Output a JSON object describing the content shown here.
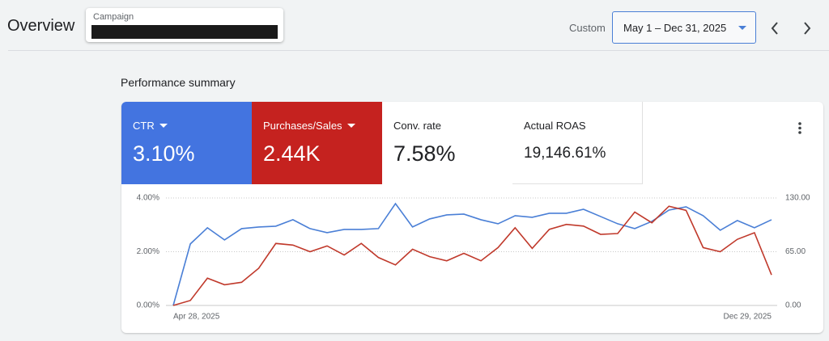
{
  "header": {
    "title": "Overview",
    "campaign_label": "Campaign",
    "range_label": "Custom",
    "date_range": "May 1 – Dec 31, 2025"
  },
  "section_title": "Performance summary",
  "chart_data": {
    "type": "line",
    "categories": [
      "Apr 28, 2025",
      null,
      null,
      null,
      null,
      null,
      null,
      null,
      null,
      null,
      null,
      null,
      null,
      null,
      null,
      null,
      null,
      null,
      null,
      null,
      null,
      null,
      null,
      null,
      null,
      null,
      null,
      null,
      null,
      null,
      null,
      null,
      null,
      null,
      null,
      "Dec 29, 2025"
    ],
    "series": [
      {
        "name": "CTR",
        "summary": "3.10%",
        "color": "#4a7fd6",
        "axis": "y",
        "values": [
          0,
          2.29,
          2.89,
          2.44,
          2.86,
          2.92,
          2.95,
          3.19,
          2.86,
          2.71,
          2.83,
          2.83,
          2.86,
          3.79,
          2.92,
          3.22,
          3.37,
          3.4,
          3.19,
          3.04,
          3.34,
          3.28,
          3.43,
          3.43,
          3.58,
          3.31,
          3.04,
          2.86,
          3.13,
          3.55,
          3.67,
          3.34,
          2.8,
          3.16,
          2.89,
          3.19
        ]
      },
      {
        "name": "Purchases/Sales",
        "summary": "2.44K",
        "color": "#c0392b",
        "axis": "y2",
        "values": [
          0,
          6,
          33,
          25,
          28,
          45,
          75,
          73,
          65,
          72,
          61,
          75,
          58,
          49,
          68,
          59,
          54,
          63,
          54,
          70,
          94,
          69,
          92,
          98,
          96,
          86,
          87,
          113,
          100,
          120,
          115,
          70,
          65,
          80,
          88,
          37
        ]
      }
    ],
    "other_metrics": [
      {
        "name": "Conv. rate",
        "summary": "7.58%"
      },
      {
        "name": "Actual ROAS",
        "summary": "19,146.61%"
      }
    ],
    "ylim": [
      0,
      4
    ],
    "yticks": [
      {
        "value": 0,
        "label": "0.00%"
      },
      {
        "value": 2,
        "label": "2.00%"
      },
      {
        "value": 4,
        "label": "4.00%"
      }
    ],
    "y2lim": [
      0,
      130
    ],
    "y2ticks": [
      {
        "value": 0,
        "label": "0.00"
      },
      {
        "value": 65,
        "label": "65.00"
      },
      {
        "value": 130,
        "label": "130.00"
      }
    ],
    "grid": true
  }
}
